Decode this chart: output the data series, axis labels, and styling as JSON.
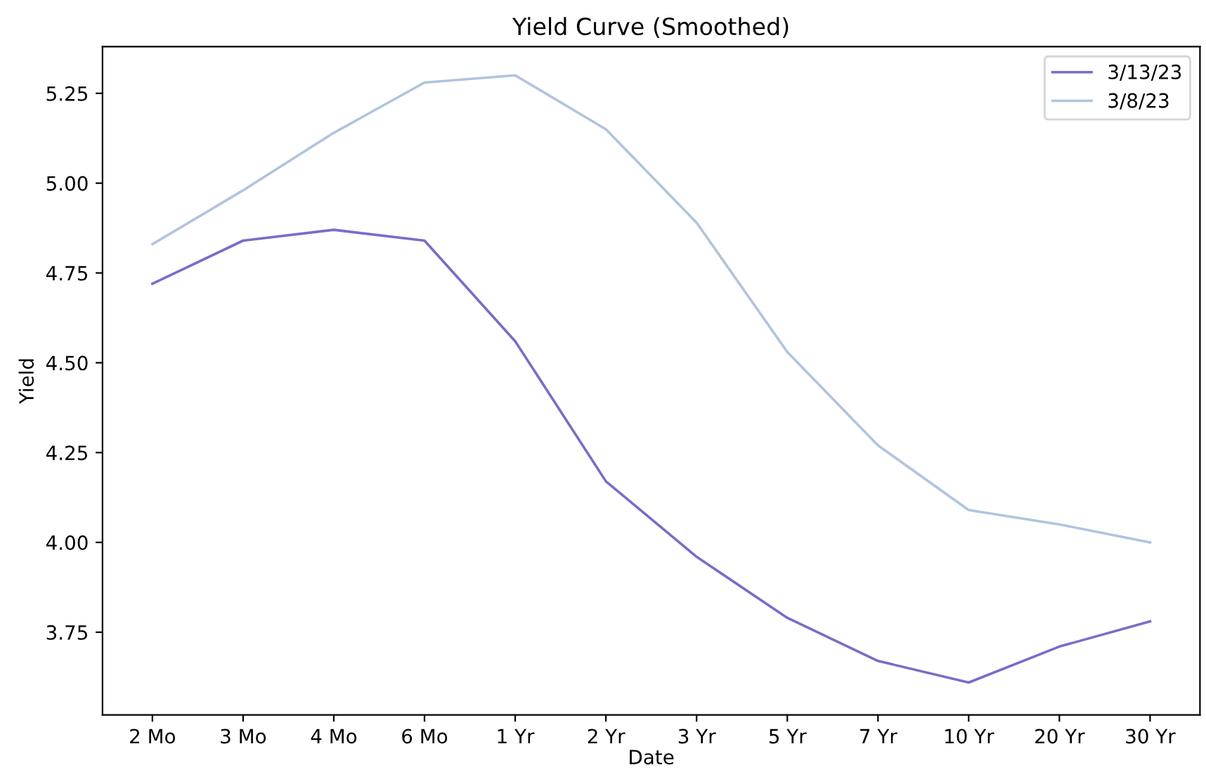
{
  "chart_data": {
    "type": "line",
    "title": "Yield Curve (Smoothed)",
    "xlabel": "Date",
    "ylabel": "Yield",
    "categories": [
      "2 Mo",
      "3 Mo",
      "4 Mo",
      "6 Mo",
      "1 Yr",
      "2 Yr",
      "3 Yr",
      "5 Yr",
      "7 Yr",
      "10 Yr",
      "20 Yr",
      "30 Yr"
    ],
    "series": [
      {
        "name": "3/13/23",
        "color": "#7a6cc8",
        "values": [
          4.72,
          4.84,
          4.87,
          4.84,
          4.56,
          4.17,
          3.96,
          3.79,
          3.67,
          3.61,
          3.71,
          3.78
        ]
      },
      {
        "name": "3/8/23",
        "color": "#b0c4de",
        "values": [
          4.83,
          4.98,
          5.14,
          5.28,
          5.3,
          5.15,
          4.89,
          4.53,
          4.27,
          4.09,
          4.05,
          4.0
        ]
      }
    ],
    "ylim": [
      3.52,
      5.38
    ],
    "yticks": [
      {
        "value": 3.75,
        "label": "3.75"
      },
      {
        "value": 4.0,
        "label": "4.00"
      },
      {
        "value": 4.25,
        "label": "4.25"
      },
      {
        "value": 4.5,
        "label": "4.50"
      },
      {
        "value": 4.75,
        "label": "4.75"
      },
      {
        "value": 5.0,
        "label": "5.00"
      },
      {
        "value": 5.25,
        "label": "5.25"
      }
    ],
    "legend": "top right",
    "grid": false,
    "marker": "none",
    "line_style": "solid"
  }
}
